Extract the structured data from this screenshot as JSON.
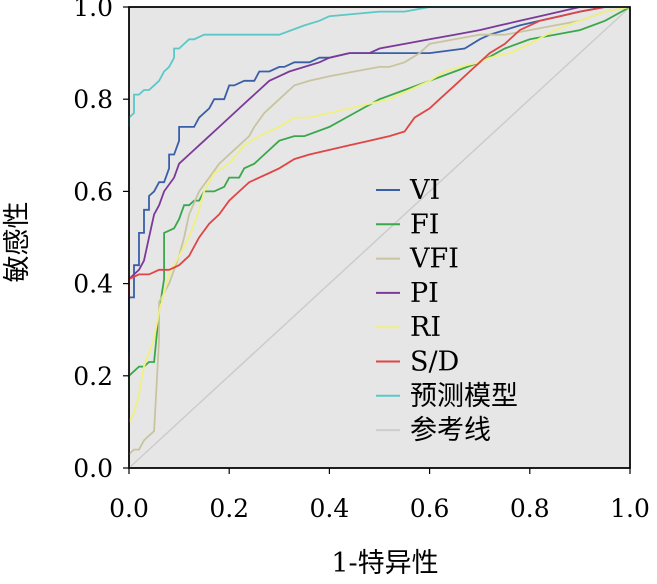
{
  "chart_data": {
    "type": "line",
    "title": "",
    "xlabel": "1-特异性",
    "ylabel": "敏感性",
    "xlim": [
      0,
      1
    ],
    "ylim": [
      0,
      1
    ],
    "xticks": [
      "0.0",
      "0.2",
      "0.4",
      "0.6",
      "0.8",
      "1.0"
    ],
    "yticks": [
      "0.0",
      "0.2",
      "0.4",
      "0.6",
      "0.8",
      "1.0"
    ],
    "grid": false,
    "background": "#e6e6e6",
    "legend_position": "center-right",
    "series": [
      {
        "name": "VI",
        "color": "#3a5fa8",
        "x": [
          0.0,
          0.0,
          0.01,
          0.01,
          0.02,
          0.02,
          0.03,
          0.03,
          0.04,
          0.04,
          0.05,
          0.06,
          0.07,
          0.08,
          0.08,
          0.09,
          0.1,
          0.1,
          0.12,
          0.13,
          0.14,
          0.16,
          0.17,
          0.19,
          0.2,
          0.21,
          0.23,
          0.25,
          0.26,
          0.28,
          0.3,
          0.31,
          0.33,
          0.36,
          0.38,
          0.4,
          0.44,
          0.47,
          0.53,
          0.6,
          0.67,
          0.7,
          0.72,
          0.75,
          0.78,
          0.82,
          0.86,
          0.9,
          0.95,
          1.0
        ],
        "y": [
          0.25,
          0.37,
          0.37,
          0.44,
          0.44,
          0.51,
          0.51,
          0.56,
          0.56,
          0.59,
          0.6,
          0.62,
          0.62,
          0.65,
          0.68,
          0.68,
          0.71,
          0.74,
          0.74,
          0.74,
          0.76,
          0.78,
          0.8,
          0.8,
          0.83,
          0.83,
          0.84,
          0.84,
          0.86,
          0.86,
          0.87,
          0.87,
          0.88,
          0.88,
          0.89,
          0.89,
          0.9,
          0.9,
          0.9,
          0.9,
          0.91,
          0.93,
          0.94,
          0.95,
          0.96,
          0.97,
          0.98,
          0.99,
          1.0,
          1.0
        ]
      },
      {
        "name": "FI",
        "color": "#3aa84a",
        "x": [
          0.0,
          0.0,
          0.02,
          0.03,
          0.04,
          0.05,
          0.06,
          0.07,
          0.07,
          0.09,
          0.1,
          0.11,
          0.12,
          0.13,
          0.14,
          0.15,
          0.17,
          0.19,
          0.2,
          0.22,
          0.23,
          0.25,
          0.26,
          0.28,
          0.3,
          0.33,
          0.35,
          0.4,
          0.45,
          0.5,
          0.55,
          0.6,
          0.65,
          0.7,
          0.75,
          0.8,
          0.85,
          0.9,
          0.95,
          1.0
        ],
        "y": [
          0.18,
          0.2,
          0.22,
          0.22,
          0.23,
          0.23,
          0.34,
          0.41,
          0.51,
          0.52,
          0.54,
          0.57,
          0.57,
          0.58,
          0.58,
          0.6,
          0.6,
          0.61,
          0.63,
          0.63,
          0.65,
          0.66,
          0.67,
          0.69,
          0.71,
          0.72,
          0.72,
          0.74,
          0.77,
          0.8,
          0.82,
          0.84,
          0.86,
          0.88,
          0.91,
          0.93,
          0.94,
          0.95,
          0.97,
          1.0
        ]
      },
      {
        "name": "VFI",
        "color": "#c8c4a0",
        "x": [
          0.0,
          0.01,
          0.02,
          0.03,
          0.04,
          0.05,
          0.06,
          0.06,
          0.08,
          0.09,
          0.1,
          0.11,
          0.12,
          0.14,
          0.16,
          0.18,
          0.2,
          0.22,
          0.24,
          0.25,
          0.27,
          0.3,
          0.33,
          0.36,
          0.4,
          0.45,
          0.5,
          0.52,
          0.55,
          0.58,
          0.6,
          0.65,
          0.7,
          0.75,
          0.8,
          0.85,
          0.9,
          0.95,
          1.0
        ],
        "y": [
          0.03,
          0.04,
          0.04,
          0.06,
          0.07,
          0.08,
          0.28,
          0.36,
          0.4,
          0.43,
          0.46,
          0.5,
          0.55,
          0.6,
          0.63,
          0.66,
          0.68,
          0.7,
          0.72,
          0.74,
          0.77,
          0.8,
          0.83,
          0.84,
          0.85,
          0.86,
          0.87,
          0.87,
          0.88,
          0.9,
          0.92,
          0.93,
          0.94,
          0.94,
          0.95,
          0.96,
          0.97,
          0.99,
          1.0
        ]
      },
      {
        "name": "PI",
        "color": "#7b3a9a",
        "x": [
          0.0,
          0.01,
          0.02,
          0.03,
          0.04,
          0.05,
          0.06,
          0.07,
          0.09,
          0.1,
          0.12,
          0.14,
          0.16,
          0.18,
          0.2,
          0.22,
          0.24,
          0.26,
          0.28,
          0.3,
          0.32,
          0.35,
          0.38,
          0.4,
          0.44,
          0.48,
          0.5,
          0.55,
          0.6,
          0.65,
          0.7,
          0.74,
          0.78,
          0.82,
          0.86,
          0.9,
          0.95,
          1.0
        ],
        "y": [
          0.41,
          0.42,
          0.43,
          0.45,
          0.5,
          0.55,
          0.57,
          0.6,
          0.63,
          0.66,
          0.68,
          0.7,
          0.72,
          0.74,
          0.76,
          0.78,
          0.8,
          0.82,
          0.84,
          0.85,
          0.86,
          0.87,
          0.88,
          0.89,
          0.9,
          0.9,
          0.91,
          0.92,
          0.93,
          0.94,
          0.95,
          0.96,
          0.97,
          0.98,
          0.99,
          1.0,
          1.0,
          1.0
        ]
      },
      {
        "name": "RI",
        "color": "#f0f080",
        "x": [
          0.0,
          0.01,
          0.02,
          0.03,
          0.04,
          0.05,
          0.06,
          0.07,
          0.08,
          0.1,
          0.12,
          0.14,
          0.15,
          0.17,
          0.2,
          0.23,
          0.26,
          0.3,
          0.33,
          0.36,
          0.4,
          0.44,
          0.48,
          0.52,
          0.56,
          0.6,
          0.63,
          0.66,
          0.7,
          0.72,
          0.76,
          0.8,
          0.85,
          0.9,
          0.95,
          1.0
        ],
        "y": [
          0.1,
          0.12,
          0.16,
          0.22,
          0.25,
          0.28,
          0.34,
          0.38,
          0.42,
          0.46,
          0.5,
          0.56,
          0.6,
          0.64,
          0.66,
          0.7,
          0.72,
          0.74,
          0.76,
          0.76,
          0.77,
          0.78,
          0.79,
          0.8,
          0.82,
          0.84,
          0.86,
          0.87,
          0.88,
          0.89,
          0.9,
          0.92,
          0.95,
          0.97,
          0.99,
          1.0
        ]
      },
      {
        "name": "S/D",
        "color": "#e04545",
        "x": [
          0.0,
          0.0,
          0.02,
          0.04,
          0.06,
          0.08,
          0.1,
          0.12,
          0.14,
          0.16,
          0.18,
          0.2,
          0.22,
          0.24,
          0.26,
          0.28,
          0.3,
          0.33,
          0.36,
          0.4,
          0.44,
          0.48,
          0.52,
          0.55,
          0.57,
          0.6,
          0.62,
          0.65,
          0.68,
          0.7,
          0.72,
          0.75,
          0.78,
          0.82,
          0.86,
          0.9,
          0.95,
          1.0
        ],
        "y": [
          0.37,
          0.41,
          0.42,
          0.42,
          0.43,
          0.43,
          0.44,
          0.46,
          0.5,
          0.53,
          0.55,
          0.58,
          0.6,
          0.62,
          0.63,
          0.64,
          0.65,
          0.67,
          0.68,
          0.69,
          0.7,
          0.71,
          0.72,
          0.73,
          0.76,
          0.78,
          0.8,
          0.83,
          0.86,
          0.88,
          0.9,
          0.92,
          0.95,
          0.97,
          0.98,
          0.99,
          1.0,
          1.0
        ]
      },
      {
        "name": "预测模型",
        "color": "#5bc8c8",
        "x": [
          0.0,
          0.0,
          0.01,
          0.01,
          0.02,
          0.03,
          0.04,
          0.05,
          0.06,
          0.07,
          0.08,
          0.09,
          0.09,
          0.1,
          0.11,
          0.12,
          0.13,
          0.15,
          0.17,
          0.2,
          0.3,
          0.35,
          0.38,
          0.4,
          0.5,
          0.55,
          0.6,
          0.7,
          0.8,
          0.9,
          0.95,
          1.0
        ],
        "y": [
          0.74,
          0.76,
          0.77,
          0.81,
          0.81,
          0.82,
          0.82,
          0.83,
          0.84,
          0.86,
          0.87,
          0.89,
          0.91,
          0.91,
          0.92,
          0.93,
          0.93,
          0.94,
          0.94,
          0.94,
          0.94,
          0.96,
          0.97,
          0.98,
          0.99,
          0.99,
          1.0,
          1.0,
          1.0,
          1.0,
          1.0,
          1.0
        ]
      },
      {
        "name": "参考线",
        "color": "#cccccc",
        "x": [
          0,
          1
        ],
        "y": [
          0,
          1
        ]
      }
    ]
  }
}
